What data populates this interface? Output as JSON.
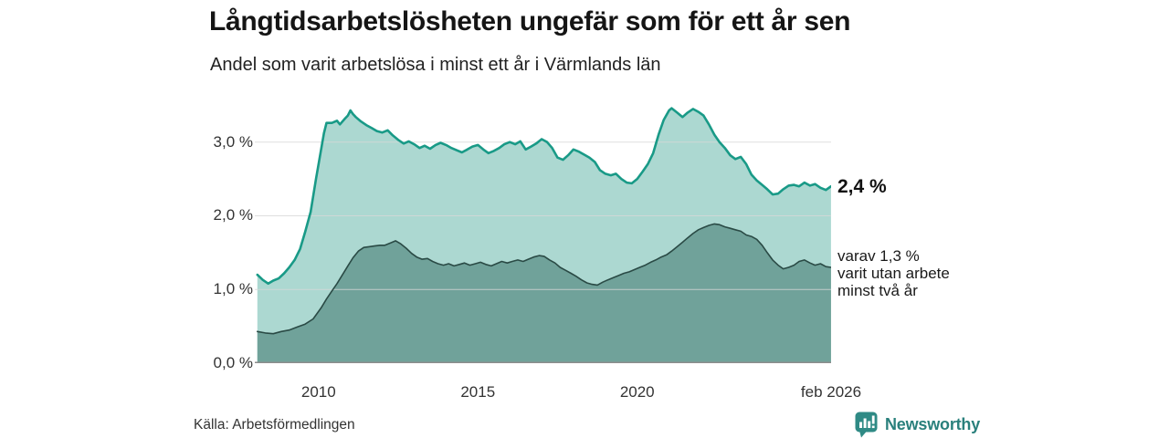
{
  "chart_data": {
    "type": "area",
    "title": "Långtidsarbetslösheten ungefär som för ett år sen",
    "subtitle": "Andel som varit arbetslösa i minst ett år i Värmlands län",
    "source": "Källa: Arbetsförmedlingen",
    "unit": "%",
    "x_range": [
      2008.0,
      2026.083
    ],
    "ylim": [
      0,
      3.566
    ],
    "grid": "horizontal",
    "legend_position": "direct-labels-right",
    "colors": {
      "grid": "#d8d8d8",
      "axis": "#8d8d8d"
    },
    "y_ticks": [
      {
        "value": 0,
        "label": "0,0 %"
      },
      {
        "value": 1,
        "label": "1,0 %"
      },
      {
        "value": 2,
        "label": "2,0 %"
      },
      {
        "value": 3,
        "label": "3,0 %"
      }
    ],
    "x_ticks": [
      {
        "value": 2010,
        "label": "2010"
      },
      {
        "value": 2015,
        "label": "2015"
      },
      {
        "value": 2020,
        "label": "2020"
      },
      {
        "value": 2026.083,
        "label": "feb 2026"
      }
    ],
    "series": [
      {
        "name": "Andel arbetslösa minst ett år",
        "line_color": "#199a87",
        "fill_color": "#acd8d1",
        "stroke_width": 2.6,
        "end_label": "2,4 %",
        "points": [
          [
            2008.08,
            1.2
          ],
          [
            2008.25,
            1.13
          ],
          [
            2008.42,
            1.08
          ],
          [
            2008.58,
            1.12
          ],
          [
            2008.75,
            1.15
          ],
          [
            2008.92,
            1.22
          ],
          [
            2009.08,
            1.3
          ],
          [
            2009.25,
            1.4
          ],
          [
            2009.42,
            1.55
          ],
          [
            2009.58,
            1.78
          ],
          [
            2009.75,
            2.05
          ],
          [
            2009.92,
            2.5
          ],
          [
            2010.08,
            2.9
          ],
          [
            2010.17,
            3.12
          ],
          [
            2010.25,
            3.26
          ],
          [
            2010.42,
            3.26
          ],
          [
            2010.58,
            3.29
          ],
          [
            2010.67,
            3.24
          ],
          [
            2010.83,
            3.32
          ],
          [
            2010.92,
            3.36
          ],
          [
            2011.0,
            3.43
          ],
          [
            2011.08,
            3.38
          ],
          [
            2011.17,
            3.34
          ],
          [
            2011.33,
            3.28
          ],
          [
            2011.5,
            3.23
          ],
          [
            2011.67,
            3.19
          ],
          [
            2011.83,
            3.15
          ],
          [
            2012.0,
            3.13
          ],
          [
            2012.17,
            3.16
          ],
          [
            2012.33,
            3.09
          ],
          [
            2012.5,
            3.03
          ],
          [
            2012.67,
            2.98
          ],
          [
            2012.83,
            3.01
          ],
          [
            2013.0,
            2.97
          ],
          [
            2013.17,
            2.92
          ],
          [
            2013.33,
            2.95
          ],
          [
            2013.5,
            2.91
          ],
          [
            2013.67,
            2.96
          ],
          [
            2013.83,
            2.99
          ],
          [
            2014.0,
            2.96
          ],
          [
            2014.17,
            2.92
          ],
          [
            2014.33,
            2.89
          ],
          [
            2014.5,
            2.86
          ],
          [
            2014.67,
            2.9
          ],
          [
            2014.83,
            2.94
          ],
          [
            2015.0,
            2.96
          ],
          [
            2015.17,
            2.9
          ],
          [
            2015.33,
            2.85
          ],
          [
            2015.5,
            2.88
          ],
          [
            2015.67,
            2.92
          ],
          [
            2015.83,
            2.97
          ],
          [
            2016.0,
            3.0
          ],
          [
            2016.17,
            2.97
          ],
          [
            2016.33,
            3.01
          ],
          [
            2016.5,
            2.9
          ],
          [
            2016.67,
            2.94
          ],
          [
            2016.83,
            2.98
          ],
          [
            2017.0,
            3.04
          ],
          [
            2017.17,
            3.0
          ],
          [
            2017.33,
            2.92
          ],
          [
            2017.5,
            2.79
          ],
          [
            2017.67,
            2.76
          ],
          [
            2017.83,
            2.82
          ],
          [
            2018.0,
            2.9
          ],
          [
            2018.17,
            2.87
          ],
          [
            2018.33,
            2.83
          ],
          [
            2018.5,
            2.79
          ],
          [
            2018.67,
            2.73
          ],
          [
            2018.83,
            2.62
          ],
          [
            2019.0,
            2.57
          ],
          [
            2019.17,
            2.55
          ],
          [
            2019.33,
            2.57
          ],
          [
            2019.5,
            2.5
          ],
          [
            2019.67,
            2.45
          ],
          [
            2019.83,
            2.44
          ],
          [
            2020.0,
            2.5
          ],
          [
            2020.17,
            2.6
          ],
          [
            2020.33,
            2.7
          ],
          [
            2020.5,
            2.85
          ],
          [
            2020.67,
            3.1
          ],
          [
            2020.83,
            3.3
          ],
          [
            2021.0,
            3.43
          ],
          [
            2021.08,
            3.46
          ],
          [
            2021.25,
            3.4
          ],
          [
            2021.42,
            3.34
          ],
          [
            2021.58,
            3.4
          ],
          [
            2021.75,
            3.45
          ],
          [
            2021.92,
            3.41
          ],
          [
            2022.08,
            3.36
          ],
          [
            2022.25,
            3.24
          ],
          [
            2022.42,
            3.1
          ],
          [
            2022.58,
            3.0
          ],
          [
            2022.75,
            2.92
          ],
          [
            2022.92,
            2.82
          ],
          [
            2023.08,
            2.77
          ],
          [
            2023.25,
            2.8
          ],
          [
            2023.42,
            2.7
          ],
          [
            2023.58,
            2.56
          ],
          [
            2023.75,
            2.48
          ],
          [
            2023.92,
            2.42
          ],
          [
            2024.08,
            2.36
          ],
          [
            2024.25,
            2.29
          ],
          [
            2024.42,
            2.3
          ],
          [
            2024.58,
            2.36
          ],
          [
            2024.75,
            2.41
          ],
          [
            2024.92,
            2.42
          ],
          [
            2025.08,
            2.4
          ],
          [
            2025.25,
            2.45
          ],
          [
            2025.42,
            2.41
          ],
          [
            2025.58,
            2.43
          ],
          [
            2025.75,
            2.38
          ],
          [
            2025.92,
            2.35
          ],
          [
            2026.08,
            2.4
          ]
        ]
      },
      {
        "name": "varav utan arbete minst två år",
        "line_color": "#2a4a45",
        "fill_color": "#70a29a",
        "stroke_width": 1.6,
        "end_label_lines": [
          "varav 1,3 %",
          "varit utan arbete",
          "minst två år"
        ],
        "points": [
          [
            2008.08,
            0.43
          ],
          [
            2008.33,
            0.41
          ],
          [
            2008.58,
            0.4
          ],
          [
            2008.83,
            0.43
          ],
          [
            2009.08,
            0.45
          ],
          [
            2009.33,
            0.49
          ],
          [
            2009.58,
            0.53
          ],
          [
            2009.83,
            0.6
          ],
          [
            2010.08,
            0.75
          ],
          [
            2010.25,
            0.87
          ],
          [
            2010.42,
            0.98
          ],
          [
            2010.58,
            1.08
          ],
          [
            2010.75,
            1.2
          ],
          [
            2010.92,
            1.32
          ],
          [
            2011.08,
            1.43
          ],
          [
            2011.25,
            1.52
          ],
          [
            2011.42,
            1.57
          ],
          [
            2011.58,
            1.58
          ],
          [
            2011.75,
            1.59
          ],
          [
            2011.92,
            1.6
          ],
          [
            2012.08,
            1.6
          ],
          [
            2012.25,
            1.63
          ],
          [
            2012.42,
            1.66
          ],
          [
            2012.58,
            1.62
          ],
          [
            2012.75,
            1.56
          ],
          [
            2012.92,
            1.49
          ],
          [
            2013.08,
            1.44
          ],
          [
            2013.25,
            1.41
          ],
          [
            2013.42,
            1.42
          ],
          [
            2013.58,
            1.38
          ],
          [
            2013.75,
            1.35
          ],
          [
            2013.92,
            1.33
          ],
          [
            2014.08,
            1.35
          ],
          [
            2014.25,
            1.32
          ],
          [
            2014.42,
            1.34
          ],
          [
            2014.58,
            1.36
          ],
          [
            2014.75,
            1.33
          ],
          [
            2014.92,
            1.35
          ],
          [
            2015.08,
            1.37
          ],
          [
            2015.25,
            1.34
          ],
          [
            2015.42,
            1.32
          ],
          [
            2015.58,
            1.35
          ],
          [
            2015.75,
            1.38
          ],
          [
            2015.92,
            1.36
          ],
          [
            2016.08,
            1.38
          ],
          [
            2016.25,
            1.4
          ],
          [
            2016.42,
            1.38
          ],
          [
            2016.58,
            1.41
          ],
          [
            2016.75,
            1.44
          ],
          [
            2016.92,
            1.46
          ],
          [
            2017.08,
            1.45
          ],
          [
            2017.25,
            1.4
          ],
          [
            2017.42,
            1.36
          ],
          [
            2017.58,
            1.3
          ],
          [
            2017.75,
            1.26
          ],
          [
            2017.92,
            1.22
          ],
          [
            2018.08,
            1.18
          ],
          [
            2018.25,
            1.13
          ],
          [
            2018.42,
            1.09
          ],
          [
            2018.58,
            1.07
          ],
          [
            2018.75,
            1.06
          ],
          [
            2018.92,
            1.1
          ],
          [
            2019.08,
            1.13
          ],
          [
            2019.25,
            1.16
          ],
          [
            2019.42,
            1.19
          ],
          [
            2019.58,
            1.22
          ],
          [
            2019.75,
            1.24
          ],
          [
            2019.92,
            1.27
          ],
          [
            2020.08,
            1.3
          ],
          [
            2020.25,
            1.33
          ],
          [
            2020.42,
            1.37
          ],
          [
            2020.58,
            1.4
          ],
          [
            2020.75,
            1.44
          ],
          [
            2020.92,
            1.47
          ],
          [
            2021.08,
            1.52
          ],
          [
            2021.25,
            1.58
          ],
          [
            2021.42,
            1.64
          ],
          [
            2021.58,
            1.7
          ],
          [
            2021.75,
            1.76
          ],
          [
            2021.92,
            1.81
          ],
          [
            2022.08,
            1.84
          ],
          [
            2022.25,
            1.87
          ],
          [
            2022.42,
            1.89
          ],
          [
            2022.58,
            1.88
          ],
          [
            2022.75,
            1.85
          ],
          [
            2022.92,
            1.83
          ],
          [
            2023.08,
            1.81
          ],
          [
            2023.25,
            1.79
          ],
          [
            2023.42,
            1.74
          ],
          [
            2023.58,
            1.72
          ],
          [
            2023.75,
            1.68
          ],
          [
            2023.92,
            1.6
          ],
          [
            2024.08,
            1.5
          ],
          [
            2024.25,
            1.4
          ],
          [
            2024.42,
            1.33
          ],
          [
            2024.58,
            1.28
          ],
          [
            2024.75,
            1.3
          ],
          [
            2024.92,
            1.33
          ],
          [
            2025.08,
            1.38
          ],
          [
            2025.25,
            1.4
          ],
          [
            2025.42,
            1.36
          ],
          [
            2025.58,
            1.33
          ],
          [
            2025.75,
            1.35
          ],
          [
            2025.92,
            1.31
          ],
          [
            2026.08,
            1.3
          ]
        ]
      }
    ]
  },
  "footer": {
    "logo_text": "Newsworthy"
  }
}
